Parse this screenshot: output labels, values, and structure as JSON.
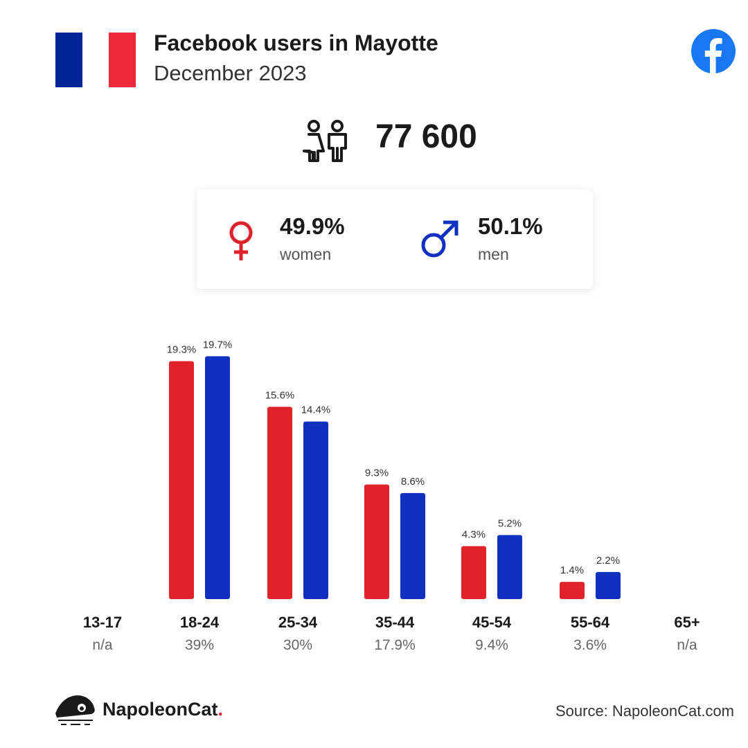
{
  "header": {
    "title": "Facebook users in Mayotte",
    "subtitle": "December 2023",
    "flag_colors": [
      "#002395",
      "#ffffff",
      "#ed2939"
    ],
    "logo_icon": "facebook-icon",
    "logo_color": "#1877f2"
  },
  "total": {
    "value": "77 600",
    "icon": "people-icon"
  },
  "gender": {
    "women": {
      "pct": "49.9%",
      "label": "women",
      "icon": "female-icon",
      "color": "#e0232a"
    },
    "men": {
      "pct": "50.1%",
      "label": "men",
      "icon": "male-icon",
      "color": "#1030c0"
    }
  },
  "chart_data": {
    "type": "bar",
    "categories": [
      "13-17",
      "18-24",
      "25-34",
      "35-44",
      "45-54",
      "55-64",
      "65+"
    ],
    "category_totals": [
      "n/a",
      "39%",
      "30%",
      "17.9%",
      "9.4%",
      "3.6%",
      "n/a"
    ],
    "series": [
      {
        "name": "women",
        "color": "#e0232a",
        "values": [
          null,
          19.3,
          15.6,
          9.3,
          4.3,
          1.4,
          null
        ],
        "labels": [
          "",
          "19.3%",
          "15.6%",
          "9.3%",
          "4.3%",
          "1.4%",
          ""
        ]
      },
      {
        "name": "men",
        "color": "#1030c0",
        "values": [
          null,
          19.7,
          14.4,
          8.6,
          5.2,
          2.2,
          null
        ],
        "labels": [
          "",
          "19.7%",
          "14.4%",
          "8.6%",
          "5.2%",
          "2.2%",
          ""
        ]
      }
    ],
    "ylim": [
      0,
      20
    ],
    "grid": false,
    "legend": "none"
  },
  "footer": {
    "brand": "NapoleonCat",
    "brand_dot": ".",
    "brand_icon": "napoleoncat-logo-icon",
    "source": "Source: NapoleonCat.com"
  }
}
